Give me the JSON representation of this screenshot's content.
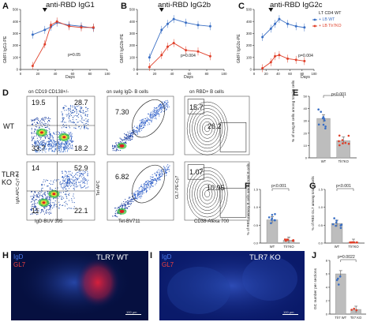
{
  "panels": {
    "A": {
      "letter": "A",
      "title": "anti-RBD IgG1",
      "ylabel": "GMFI IgG1-PE",
      "xlabel": "Days",
      "pval": "p=0.05",
      "yticks": [
        "500",
        "400",
        "300",
        "200",
        "100",
        "0"
      ],
      "xticks": [
        "0",
        "20",
        "40",
        "60",
        "80",
        "100"
      ]
    },
    "B": {
      "letter": "B",
      "title": "anti-RBD IgG2b",
      "ylabel": "GMFI IgG2b-PE",
      "xlabel": "Days",
      "pval": "p=0.004",
      "yticks": [
        "500",
        "400",
        "300",
        "200",
        "100",
        "0"
      ],
      "xticks": [
        "0",
        "20",
        "40",
        "60",
        "80",
        "100"
      ]
    },
    "C": {
      "letter": "C",
      "title": "anti-RBD IgG2c",
      "ylabel": "GMFI IgG2c-PE",
      "xlabel": "Days",
      "pval": "p=0.004",
      "yticks": [
        "500",
        "400",
        "300",
        "200",
        "100",
        "0"
      ],
      "xticks": [
        "0",
        "20",
        "40",
        "60",
        "80",
        "100"
      ]
    },
    "D": {
      "letter": "D",
      "col1": "on CD19 CD138+/-",
      "col2": "on swIg IgD- B cells",
      "col3": "on RBD+ B cells",
      "row1": "WT",
      "row2": "TLR7 KO",
      "wt": {
        "q_tl": "19.5",
        "q_tr": "28.7",
        "q_bl": "33.7",
        "q_br": "18.2",
        "rbd": "7.30",
        "gc": "15.7",
        "mem": "26.2"
      },
      "ko": {
        "q_tl": "14",
        "q_tr": "52.9",
        "q_bl": "11",
        "q_br": "22.1",
        "rbd": "6.82",
        "gc": "1.07",
        "mem": "10.95"
      },
      "y1": "IgM-APC-Cy7-A",
      "x1": "IgD-BUV 395",
      "y2": "Tet-APC",
      "x2": "Tet-BV711",
      "y3": "GL7-PE-Cy7",
      "x3": "CD38-Alexa 700"
    },
    "E": {
      "letter": "E",
      "ylabel": "% of swIg B cells among total B cells",
      "pval": "p<0.001",
      "yticks": [
        "50",
        "40",
        "30",
        "20",
        "10",
        "0"
      ],
      "cats": [
        "WT",
        "Tlr7KO"
      ]
    },
    "F": {
      "letter": "F",
      "ylabel": "% of RBD memory B cells among total B cells",
      "pval": "p<0.001",
      "yticks": [
        "1.5",
        "1.0",
        "0.5",
        "0.0"
      ],
      "cats": [
        "WT",
        "Tlr7KO"
      ]
    },
    "G": {
      "letter": "G",
      "ylabel": "% of RBD GL7 among total B cells",
      "pval": "p<0.001",
      "yticks": [
        "1.5",
        "1.0",
        "0.5",
        "0.0"
      ],
      "cats": [
        "WT",
        "Tlr7KO"
      ]
    },
    "H": {
      "letter": "H",
      "stain1": "IgD",
      "stain2": "GL7",
      "label": "TLR7 WT",
      "scale": "100 µm"
    },
    "I": {
      "letter": "I",
      "stain1": "IgD",
      "stain2": "GL7",
      "label": "TLR7 KO",
      "scale": "100 µm"
    },
    "J": {
      "letter": "J",
      "ylabel": "GC number per sections",
      "pval": "p=0.0022",
      "yticks": [
        "8",
        "6",
        "4",
        "2",
        "0"
      ],
      "cats": [
        "Tlr7 WT",
        "Tlr7 KO"
      ]
    }
  },
  "legend": {
    "title": "LT CD4 WT",
    "item1": "+ LB WT",
    "item2": "+ LB Tlr7KO"
  },
  "colors": {
    "wt": "#3a6fc4",
    "ko": "#e0402a",
    "bar": "#bdbdbd"
  },
  "chart_data": [
    {
      "type": "line",
      "title": "anti-RBD IgG1",
      "xlabel": "Days",
      "ylabel": "GMFI IgG1-PE",
      "ylim": [
        0,
        500
      ],
      "xlim": [
        0,
        100
      ],
      "series": [
        {
          "name": "+ LB WT",
          "x": [
            14,
            28,
            35,
            42,
            56,
            70,
            84
          ],
          "y": [
            290,
            330,
            355,
            390,
            370,
            360,
            345
          ]
        },
        {
          "name": "+ LB Tlr7KO",
          "x": [
            14,
            28,
            35,
            42,
            56,
            70,
            84
          ],
          "y": [
            30,
            210,
            370,
            400,
            360,
            350,
            350
          ]
        }
      ]
    },
    {
      "type": "line",
      "title": "anti-RBD IgG2b",
      "xlabel": "Days",
      "ylabel": "GMFI IgG2b-PE",
      "ylim": [
        0,
        500
      ],
      "xlim": [
        0,
        100
      ],
      "series": [
        {
          "name": "+ LB WT",
          "x": [
            14,
            28,
            35,
            42,
            56,
            70,
            84
          ],
          "y": [
            100,
            330,
            380,
            420,
            390,
            370,
            360
          ]
        },
        {
          "name": "+ LB Tlr7KO",
          "x": [
            14,
            28,
            35,
            42,
            56,
            70,
            84
          ],
          "y": [
            20,
            120,
            190,
            220,
            160,
            150,
            110
          ]
        }
      ]
    },
    {
      "type": "line",
      "title": "anti-RBD IgG2c",
      "xlabel": "Days",
      "ylabel": "GMFI IgG2c-PE",
      "ylim": [
        0,
        500
      ],
      "xlim": [
        0,
        100
      ],
      "series": [
        {
          "name": "+ LB WT",
          "x": [
            14,
            28,
            35,
            42,
            56,
            70,
            84
          ],
          "y": [
            270,
            340,
            380,
            420,
            380,
            360,
            350
          ]
        },
        {
          "name": "+ LB Tlr7KO",
          "x": [
            14,
            28,
            35,
            42,
            56,
            70,
            84
          ],
          "y": [
            10,
            60,
            110,
            120,
            90,
            80,
            70
          ]
        }
      ]
    },
    {
      "type": "bar",
      "ylabel": "% of swIg B cells among total B cells",
      "categories": [
        "WT",
        "Tlr7KO"
      ],
      "values": [
        32,
        14
      ],
      "ylim": [
        0,
        50
      ]
    },
    {
      "type": "bar",
      "ylabel": "% of RBD memory B cells among total B cells",
      "categories": [
        "WT",
        "Tlr7KO"
      ],
      "values": [
        0.65,
        0.08
      ],
      "ylim": [
        0,
        1.5
      ]
    },
    {
      "type": "bar",
      "ylabel": "% of RBD GL7 among total B cells",
      "categories": [
        "WT",
        "Tlr7KO"
      ],
      "values": [
        0.55,
        0.02
      ],
      "ylim": [
        0,
        1.5
      ]
    },
    {
      "type": "bar",
      "ylabel": "GC number per sections",
      "categories": [
        "Tlr7 WT",
        "Tlr7 KO"
      ],
      "values": [
        6,
        0.7
      ],
      "ylim": [
        0,
        8
      ]
    }
  ]
}
